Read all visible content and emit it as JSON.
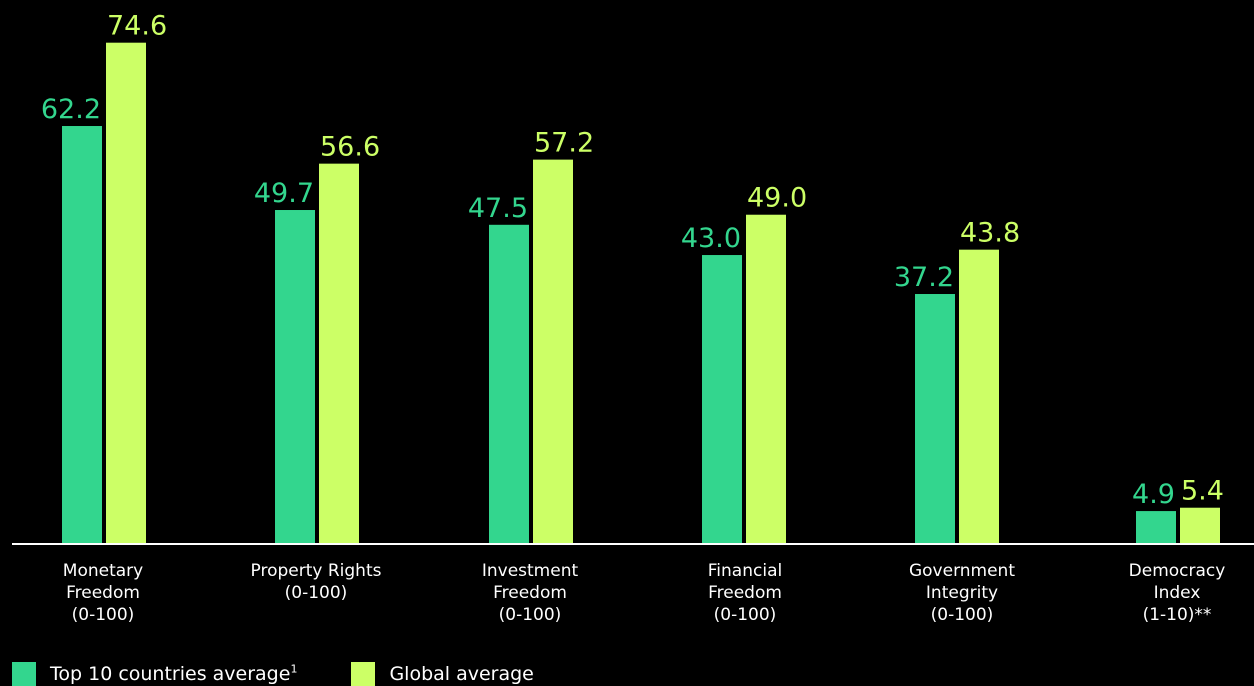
{
  "chart_data": {
    "type": "bar",
    "categories": [
      [
        "Monetary",
        "Freedom",
        "(0-100)"
      ],
      [
        "Property Rights",
        "(0-100)"
      ],
      [
        "Investment",
        "Freedom",
        "(0-100)"
      ],
      [
        "Financial",
        "Freedom",
        "(0-100)"
      ],
      [
        "Government",
        "Integrity",
        "(0-100)"
      ],
      [
        "Democracy",
        "Index",
        "(1-10)**"
      ]
    ],
    "series": [
      {
        "name": "Top 10 countries average",
        "footnote": "1",
        "color": "#33d68e",
        "values": [
          62.2,
          49.7,
          47.5,
          43.0,
          37.2,
          4.9
        ],
        "labels": [
          "62.2",
          "49.7",
          "47.5",
          "43.0",
          "37.2",
          "4.9"
        ]
      },
      {
        "name": "Global average",
        "color": "#ccff66",
        "values": [
          74.6,
          56.6,
          57.2,
          49.0,
          43.8,
          5.4
        ],
        "labels": [
          "74.6",
          "56.6",
          "57.2",
          "49.0",
          "43.8",
          "5.4"
        ]
      }
    ],
    "title": "",
    "xlabel": "",
    "ylabel": "",
    "grid": false,
    "legend_position": "bottom-left",
    "axis_color": "#ffffff",
    "background": "#000000"
  }
}
